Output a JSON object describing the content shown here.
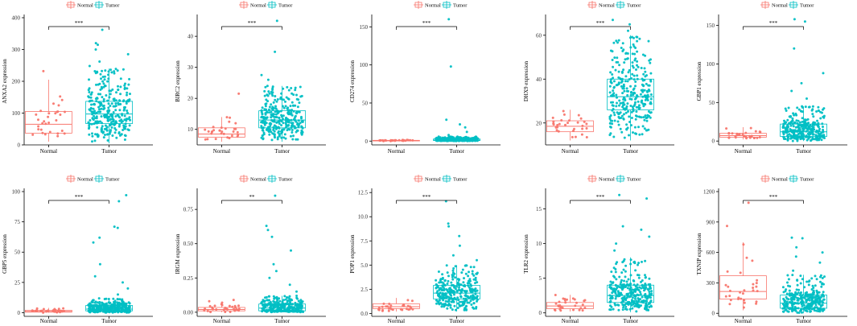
{
  "figure": {
    "colors": {
      "normal": "#F8766D",
      "tumor": "#00BFC4",
      "axis": "#000000"
    },
    "legend_labels": [
      "Normal",
      "Tumor"
    ],
    "group_labels": [
      "Normal",
      "Tumor"
    ]
  },
  "chart_data": [
    {
      "type": "box-jitter",
      "title": "",
      "xlabel": "",
      "ylabel": "ANXA2 expression",
      "categories": [
        "Normal",
        "Tumor"
      ],
      "ylim": [
        0,
        400
      ],
      "yticks": [
        0,
        100,
        200,
        300,
        400
      ],
      "significance": "***",
      "series": [
        {
          "name": "Normal",
          "q1": 37,
          "median": 65,
          "q3": 105,
          "whisker_low": 10,
          "whisker_high": 205,
          "outliers": [
            232
          ],
          "n": 30
        },
        {
          "name": "Tumor",
          "q1": 67,
          "median": 97,
          "q3": 137,
          "whisker_low": 5,
          "whisker_high": 240,
          "outliers": [
            248,
            262,
            285,
            300,
            315,
            320,
            362
          ],
          "n": 300
        }
      ]
    },
    {
      "type": "box-jitter",
      "title": "",
      "xlabel": "",
      "ylabel": "BIRC2 expression",
      "categories": [
        "Normal",
        "Tumor"
      ],
      "ylim": [
        5,
        46
      ],
      "yticks": [
        10,
        20,
        30,
        40
      ],
      "significance": "***",
      "series": [
        {
          "name": "Normal",
          "q1": 7.5,
          "median": 8.5,
          "q3": 10.5,
          "whisker_low": 6,
          "whisker_high": 14,
          "outliers": [
            21.5
          ],
          "n": 30
        },
        {
          "name": "Tumor",
          "q1": 10.5,
          "median": 13,
          "q3": 16,
          "whisker_low": 6,
          "whisker_high": 24,
          "outliers": [
            26,
            27.5,
            35,
            45
          ],
          "n": 300
        }
      ]
    },
    {
      "type": "box-jitter",
      "title": "",
      "xlabel": "",
      "ylabel": "CD274 expression",
      "categories": [
        "Normal",
        "Tumor"
      ],
      "ylim": [
        -5,
        162
      ],
      "yticks": [
        0,
        50,
        100,
        150
      ],
      "significance": "***",
      "series": [
        {
          "name": "Normal",
          "q1": 0.3,
          "median": 0.6,
          "q3": 1.0,
          "whisker_low": 0,
          "whisker_high": 1.6,
          "outliers": [],
          "n": 30
        },
        {
          "name": "Tumor",
          "q1": 0.7,
          "median": 1.3,
          "q3": 2.8,
          "whisker_low": 0,
          "whisker_high": 6,
          "outliers": [
            8,
            12,
            18,
            22,
            28,
            98,
            160
          ],
          "n": 300
        }
      ]
    },
    {
      "type": "box-jitter",
      "title": "",
      "xlabel": "",
      "ylabel": "DHX9 expression",
      "categories": [
        "Normal",
        "Tumor"
      ],
      "ylim": [
        10,
        68
      ],
      "yticks": [
        20,
        40,
        60
      ],
      "significance": "***",
      "series": [
        {
          "name": "Normal",
          "q1": 16,
          "median": 18.5,
          "q3": 21,
          "whisker_low": 12,
          "whisker_high": 26,
          "outliers": [],
          "n": 30
        },
        {
          "name": "Tumor",
          "q1": 26,
          "median": 32,
          "q3": 40,
          "whisker_low": 12,
          "whisker_high": 60,
          "outliers": [
            62,
            65,
            67
          ],
          "n": 300
        }
      ]
    },
    {
      "type": "box-jitter",
      "title": "",
      "xlabel": "",
      "ylabel": "GBP1 expression",
      "categories": [
        "Normal",
        "Tumor"
      ],
      "ylim": [
        -5,
        160
      ],
      "yticks": [
        0,
        50,
        100,
        150
      ],
      "significance": "***",
      "series": [
        {
          "name": "Normal",
          "q1": 5,
          "median": 7,
          "q3": 10,
          "whisker_low": 2,
          "whisker_high": 18,
          "outliers": [],
          "n": 30
        },
        {
          "name": "Tumor",
          "q1": 6,
          "median": 12,
          "q3": 22,
          "whisker_low": 0,
          "whisker_high": 45,
          "outliers": [
            55,
            65,
            75,
            88,
            120,
            155,
            158
          ],
          "n": 300
        }
      ]
    },
    {
      "type": "box-jitter",
      "title": "",
      "xlabel": "",
      "ylabel": "GBP5 expression",
      "categories": [
        "Normal",
        "Tumor"
      ],
      "ylim": [
        -3,
        100
      ],
      "yticks": [
        0,
        25,
        50,
        75,
        100
      ],
      "significance": "***",
      "series": [
        {
          "name": "Normal",
          "q1": 0.5,
          "median": 1,
          "q3": 2,
          "whisker_low": 0,
          "whisker_high": 4,
          "outliers": [],
          "n": 30
        },
        {
          "name": "Tumor",
          "q1": 1.5,
          "median": 3,
          "q3": 6,
          "whisker_low": 0,
          "whisker_high": 12,
          "outliers": [
            15,
            20,
            25,
            30,
            40,
            58,
            62,
            70,
            71,
            92,
            97
          ],
          "n": 300
        }
      ]
    },
    {
      "type": "box-jitter",
      "title": "",
      "xlabel": "",
      "ylabel": "IRGM expression",
      "categories": [
        "Normal",
        "Tumor"
      ],
      "ylim": [
        -0.03,
        0.88
      ],
      "yticks": [
        0.0,
        0.25,
        0.5,
        0.75
      ],
      "significance": "**",
      "series": [
        {
          "name": "Normal",
          "q1": 0.01,
          "median": 0.02,
          "q3": 0.035,
          "whisker_low": 0,
          "whisker_high": 0.07,
          "outliers": [
            0.08,
            0.09
          ],
          "n": 30
        },
        {
          "name": "Tumor",
          "q1": 0.01,
          "median": 0.03,
          "q3": 0.06,
          "whisker_low": 0,
          "whisker_high": 0.12,
          "outliers": [
            0.15,
            0.2,
            0.25,
            0.3,
            0.35,
            0.45,
            0.55,
            0.6,
            0.63,
            0.85
          ],
          "n": 300
        }
      ]
    },
    {
      "type": "box-jitter",
      "title": "",
      "xlabel": "",
      "ylabel": "POP1 expression",
      "categories": [
        "Normal",
        "Tumor"
      ],
      "ylim": [
        -0.3,
        12.6
      ],
      "yticks": [
        0.0,
        2.5,
        5.0,
        7.5,
        10.0,
        12.5
      ],
      "significance": "***",
      "series": [
        {
          "name": "Normal",
          "q1": 0.5,
          "median": 0.7,
          "q3": 1.0,
          "whisker_low": 0.2,
          "whisker_high": 1.6,
          "outliers": [],
          "n": 30
        },
        {
          "name": "Tumor",
          "q1": 1.5,
          "median": 2.1,
          "q3": 2.9,
          "whisker_low": 0.2,
          "whisker_high": 5,
          "outliers": [
            5.5,
            6,
            7,
            8,
            9,
            9.3,
            11.6
          ],
          "n": 300
        }
      ]
    },
    {
      "type": "box-jitter",
      "title": "",
      "xlabel": "",
      "ylabel": "TLR2 expression",
      "categories": [
        "Normal",
        "Tumor"
      ],
      "ylim": [
        -0.5,
        17.5
      ],
      "yticks": [
        0,
        5,
        10,
        15
      ],
      "significance": "***",
      "series": [
        {
          "name": "Normal",
          "q1": 0.6,
          "median": 1.0,
          "q3": 1.5,
          "whisker_low": 0.2,
          "whisker_high": 2.6,
          "outliers": [],
          "n": 30
        },
        {
          "name": "Tumor",
          "q1": 1.5,
          "median": 2.5,
          "q3": 4.0,
          "whisker_low": 0.1,
          "whisker_high": 8,
          "outliers": [
            9,
            10,
            11,
            12,
            12.5,
            16.5,
            17
          ],
          "n": 300
        }
      ]
    },
    {
      "type": "box-jitter",
      "title": "",
      "xlabel": "",
      "ylabel": "TXNIP expression",
      "categories": [
        "Normal",
        "Tumor"
      ],
      "ylim": [
        -30,
        1200
      ],
      "yticks": [
        0,
        300,
        600,
        900,
        1200
      ],
      "significance": "***",
      "series": [
        {
          "name": "Normal",
          "q1": 140,
          "median": 215,
          "q3": 370,
          "whisker_low": 30,
          "whisker_high": 700,
          "outliers": [
            860,
            1090
          ],
          "n": 30
        },
        {
          "name": "Tumor",
          "q1": 50,
          "median": 100,
          "q3": 180,
          "whisker_low": 0,
          "whisker_high": 380,
          "outliers": [
            420,
            500,
            560,
            600,
            650,
            740,
            745
          ],
          "n": 300
        }
      ]
    }
  ]
}
